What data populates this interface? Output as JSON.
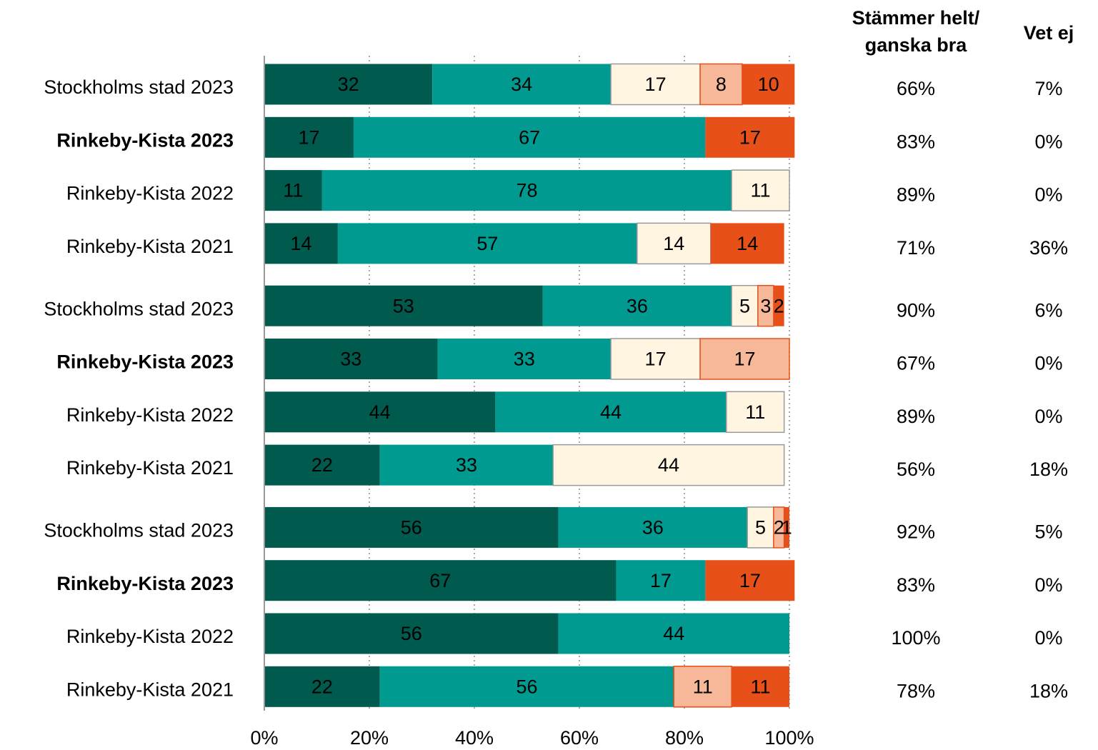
{
  "chart_data": {
    "type": "stacked_barh",
    "categories": [
      "Stockholms stad 2023",
      "Rinkeby-Kista 2023",
      "Rinkeby-Kista 2022",
      "Rinkeby-Kista 2021",
      "Stockholms stad 2023",
      "Rinkeby-Kista 2023",
      "Rinkeby-Kista 2022",
      "Rinkeby-Kista 2021",
      "Stockholms stad 2023",
      "Rinkeby-Kista 2023",
      "Rinkeby-Kista 2022",
      "Rinkeby-Kista 2021"
    ],
    "bold": [
      false,
      true,
      false,
      false,
      false,
      true,
      false,
      false,
      false,
      true,
      false,
      false
    ],
    "series": [
      {
        "color": "#005a4e",
        "label_color": "#ffffff",
        "stroke": "none",
        "values": [
          32,
          17,
          11,
          14,
          53,
          33,
          44,
          22,
          56,
          67,
          56,
          22
        ]
      },
      {
        "color": "#009a90",
        "label_color": "#000000",
        "stroke": "none",
        "values": [
          34,
          67,
          78,
          57,
          36,
          33,
          44,
          33,
          36,
          17,
          44,
          56
        ]
      },
      {
        "color": "#fff5e0",
        "label_color": "#000000",
        "stroke": "#999999",
        "values": [
          17,
          null,
          11,
          14,
          5,
          17,
          11,
          44,
          5,
          null,
          null,
          null
        ]
      },
      {
        "color": "#f7b89a",
        "label_color": "#000000",
        "stroke": "#e8501a",
        "values": [
          8,
          null,
          null,
          null,
          3,
          17,
          null,
          null,
          2,
          null,
          null,
          11
        ]
      },
      {
        "color": "#e8501a",
        "label_color": "#000000",
        "stroke": "none",
        "values": [
          10,
          17,
          null,
          14,
          2,
          null,
          null,
          null,
          1,
          17,
          null,
          11
        ]
      }
    ],
    "xlim": [
      0,
      100
    ],
    "xticks": [
      {
        "value": 0,
        "label": "0%"
      },
      {
        "value": 20,
        "label": "20%"
      },
      {
        "value": 40,
        "label": "40%"
      },
      {
        "value": 60,
        "label": "60%"
      },
      {
        "value": 80,
        "label": "80%"
      },
      {
        "value": 100,
        "label": "100%"
      }
    ],
    "grid": true,
    "columns": [
      {
        "header": [
          "Stämmer helt/",
          "ganska bra"
        ],
        "values": [
          66,
          83,
          89,
          71,
          90,
          67,
          89,
          56,
          92,
          83,
          100,
          78
        ],
        "value_labels": [
          "66%",
          "83%",
          "89%",
          "71%",
          "90%",
          "67%",
          "89%",
          "56%",
          "92%",
          "83%",
          "100%",
          "78%"
        ]
      },
      {
        "header": [
          "Vet ej"
        ],
        "values": [
          7,
          0,
          0,
          36,
          6,
          0,
          0,
          18,
          5,
          0,
          0,
          18
        ],
        "value_labels": [
          "7%",
          "0%",
          "0%",
          "36%",
          "6%",
          "0%",
          "0%",
          "18%",
          "5%",
          "0%",
          "0%",
          "18%"
        ]
      }
    ]
  }
}
